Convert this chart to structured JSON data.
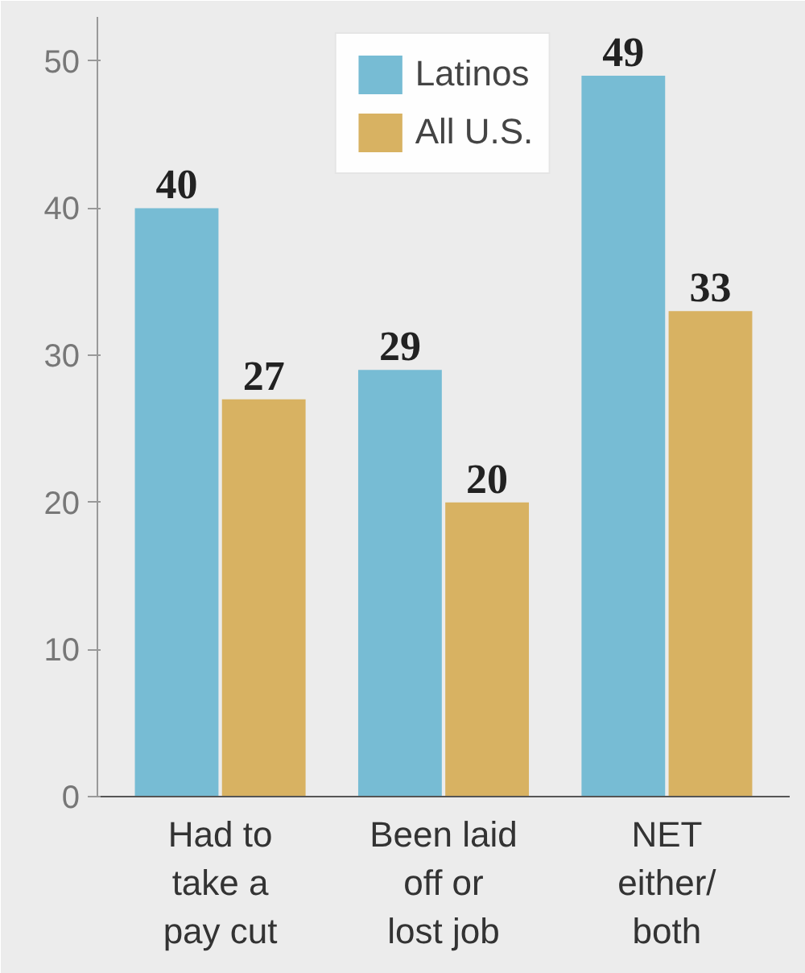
{
  "chart_data": {
    "type": "bar",
    "categories": [
      "Had to\ntake a\npay cut",
      "Been laid\noff or\nlost job",
      "NET\neither/\nboth"
    ],
    "series": [
      {
        "name": "Latinos",
        "color": "#77bcd4",
        "values": [
          40,
          29,
          49
        ]
      },
      {
        "name": "All U.S.",
        "color": "#d8b262",
        "values": [
          27,
          20,
          33
        ]
      }
    ],
    "ylim": [
      0,
      53
    ],
    "yticks": [
      0,
      10,
      20,
      30,
      40,
      50
    ],
    "data_labels": true,
    "legend": "top",
    "grid": false
  }
}
